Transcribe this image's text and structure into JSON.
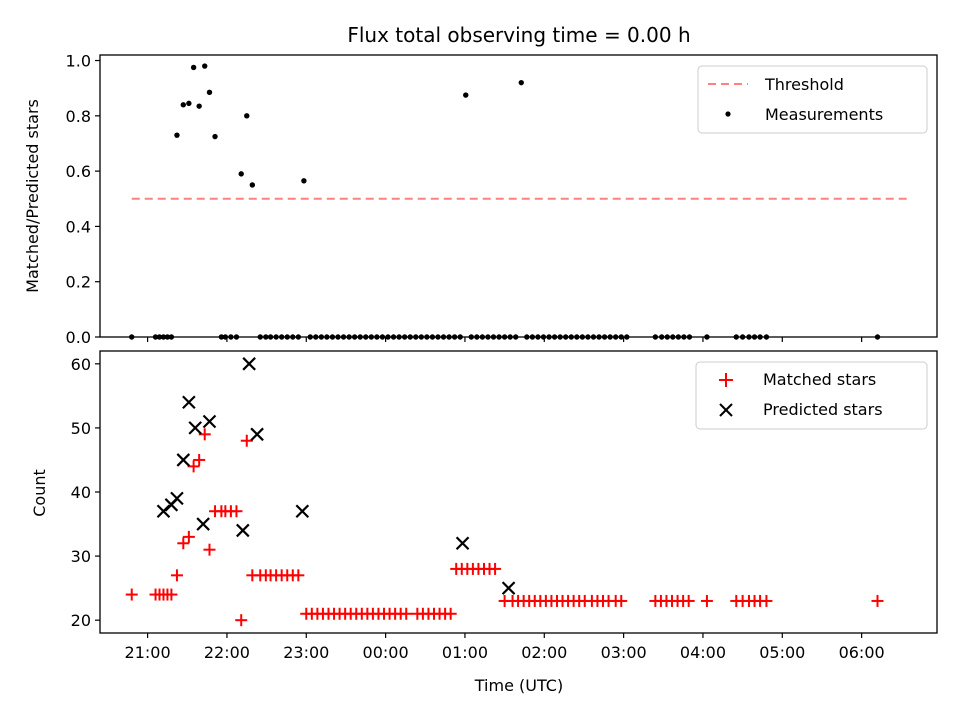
{
  "chart_data": {
    "title": "Flux total observing time = 0.00 h",
    "xlabel": "Time (UTC)",
    "x_ticks": [
      "21:00",
      "22:00",
      "23:00",
      "00:00",
      "01:00",
      "02:00",
      "03:00",
      "04:00",
      "05:00",
      "06:00"
    ],
    "x_range_hours": [
      20.4,
      30.95
    ],
    "top": {
      "type": "scatter",
      "ylabel": "Matched/Predicted stars",
      "ylim": [
        0.0,
        1.02
      ],
      "y_ticks": [
        0.0,
        0.2,
        0.4,
        0.6,
        0.8,
        1.0
      ],
      "y_tick_labels": [
        "0.0",
        "0.2",
        "0.4",
        "0.6",
        "0.8",
        "1.0"
      ],
      "threshold": {
        "name": "Threshold",
        "value": 0.5,
        "x_start": 20.8,
        "x_end": 30.6,
        "color": "#ff8080"
      },
      "measurements": {
        "name": "Measurements",
        "color": "#000000",
        "x": [
          20.8,
          21.1,
          21.15,
          21.2,
          21.25,
          21.3,
          21.37,
          21.45,
          21.52,
          21.58,
          21.65,
          21.72,
          21.78,
          21.85,
          21.93,
          21.98,
          22.05,
          22.12,
          22.18,
          22.25,
          22.32,
          22.42,
          22.49,
          22.55,
          22.62,
          22.69,
          22.76,
          22.83,
          22.9,
          22.97,
          23.05,
          23.12,
          23.19,
          23.26,
          23.33,
          23.4,
          23.47,
          23.54,
          23.61,
          23.68,
          23.75,
          23.82,
          23.89,
          23.96,
          24.03,
          24.1,
          24.17,
          24.24,
          24.31,
          24.38,
          24.45,
          24.52,
          24.59,
          24.66,
          24.73,
          24.8,
          24.87,
          24.94,
          25.01,
          25.08,
          25.15,
          25.22,
          25.29,
          25.36,
          25.43,
          25.5,
          25.57,
          25.64,
          25.71,
          25.78,
          25.85,
          25.92,
          25.99,
          26.06,
          26.13,
          26.2,
          26.27,
          26.34,
          26.41,
          26.48,
          26.55,
          26.62,
          26.69,
          26.76,
          26.83,
          26.9,
          26.97,
          27.04,
          27.4,
          27.48,
          27.55,
          27.62,
          27.69,
          27.76,
          27.83,
          28.05,
          28.42,
          28.5,
          28.58,
          28.65,
          28.72,
          28.8,
          30.2
        ],
        "y": [
          0.0,
          0.0,
          0.0,
          0.0,
          0.0,
          0.0,
          0.73,
          0.84,
          0.845,
          0.975,
          0.835,
          0.98,
          0.885,
          0.725,
          0.0,
          0.0,
          0.0,
          0.0,
          0.59,
          0.8,
          0.55,
          0.0,
          0.0,
          0.0,
          0.0,
          0.0,
          0.0,
          0.0,
          0.0,
          0.565,
          0.0,
          0.0,
          0.0,
          0.0,
          0.0,
          0.0,
          0.0,
          0.0,
          0.0,
          0.0,
          0.0,
          0.0,
          0.0,
          0.0,
          0.0,
          0.0,
          0.0,
          0.0,
          0.0,
          0.0,
          0.0,
          0.0,
          0.0,
          0.0,
          0.0,
          0.0,
          0.0,
          0.0,
          0.875,
          0.0,
          0.0,
          0.0,
          0.0,
          0.0,
          0.0,
          0.0,
          0.0,
          0.0,
          0.92,
          0.0,
          0.0,
          0.0,
          0.0,
          0.0,
          0.0,
          0.0,
          0.0,
          0.0,
          0.0,
          0.0,
          0.0,
          0.0,
          0.0,
          0.0,
          0.0,
          0.0,
          0.0,
          0.0,
          0.0,
          0.0,
          0.0,
          0.0,
          0.0,
          0.0,
          0.0,
          0.0,
          0.0,
          0.0,
          0.0,
          0.0,
          0.0,
          0.0,
          0.0
        ]
      },
      "legend": [
        "Threshold",
        "Measurements"
      ]
    },
    "bottom": {
      "type": "scatter",
      "ylabel": "Count",
      "ylim": [
        18,
        62
      ],
      "y_ticks": [
        20,
        30,
        40,
        50,
        60
      ],
      "y_tick_labels": [
        "20",
        "30",
        "40",
        "50",
        "60"
      ],
      "matched": {
        "name": "Matched stars",
        "color": "#ff0000",
        "marker": "+",
        "x": [
          20.8,
          21.1,
          21.15,
          21.2,
          21.25,
          21.3,
          21.37,
          21.45,
          21.52,
          21.58,
          21.65,
          21.72,
          21.78,
          21.85,
          21.93,
          21.98,
          22.05,
          22.12,
          22.18,
          22.25,
          22.32,
          22.42,
          22.49,
          22.55,
          22.62,
          22.69,
          22.76,
          22.83,
          22.9,
          23.0,
          23.07,
          23.14,
          23.21,
          23.28,
          23.35,
          23.42,
          23.49,
          23.56,
          23.63,
          23.7,
          23.77,
          23.84,
          23.91,
          23.98,
          24.05,
          24.12,
          24.19,
          24.26,
          24.4,
          24.47,
          24.54,
          24.61,
          24.68,
          24.75,
          24.82,
          24.89,
          24.96,
          25.03,
          25.1,
          25.17,
          25.24,
          25.31,
          25.38,
          25.5,
          25.6,
          25.67,
          25.74,
          25.81,
          25.88,
          25.95,
          26.02,
          26.09,
          26.16,
          26.23,
          26.3,
          26.37,
          26.44,
          26.51,
          26.6,
          26.67,
          26.74,
          26.81,
          26.9,
          26.97,
          27.4,
          27.47,
          27.54,
          27.61,
          27.68,
          27.75,
          27.82,
          28.05,
          28.42,
          28.5,
          28.58,
          28.65,
          28.72,
          28.8,
          30.2
        ],
        "y": [
          24,
          24,
          24,
          24,
          24,
          24,
          27,
          32,
          33,
          44,
          45,
          49,
          31,
          37,
          37,
          37,
          37,
          37,
          20,
          48,
          27,
          27,
          27,
          27,
          27,
          27,
          27,
          27,
          27,
          21,
          21,
          21,
          21,
          21,
          21,
          21,
          21,
          21,
          21,
          21,
          21,
          21,
          21,
          21,
          21,
          21,
          21,
          21,
          21,
          21,
          21,
          21,
          21,
          21,
          21,
          28,
          28,
          28,
          28,
          28,
          28,
          28,
          28,
          23,
          23,
          23,
          23,
          23,
          23,
          23,
          23,
          23,
          23,
          23,
          23,
          23,
          23,
          23,
          23,
          23,
          23,
          23,
          23,
          23,
          23,
          23,
          23,
          23,
          23,
          23,
          23,
          23,
          23,
          23,
          23,
          23,
          23,
          23,
          23
        ]
      },
      "predicted": {
        "name": "Predicted stars",
        "color": "#000000",
        "marker": "x",
        "x": [
          21.2,
          21.3,
          21.37,
          21.45,
          21.52,
          21.6,
          21.7,
          21.78,
          22.2,
          22.28,
          22.38,
          22.95,
          24.97,
          25.55
        ],
        "y": [
          37,
          38,
          39,
          45,
          54,
          50,
          35,
          51,
          34,
          60,
          49,
          37,
          32,
          25
        ]
      },
      "legend": [
        "Matched stars",
        "Predicted stars"
      ]
    }
  }
}
